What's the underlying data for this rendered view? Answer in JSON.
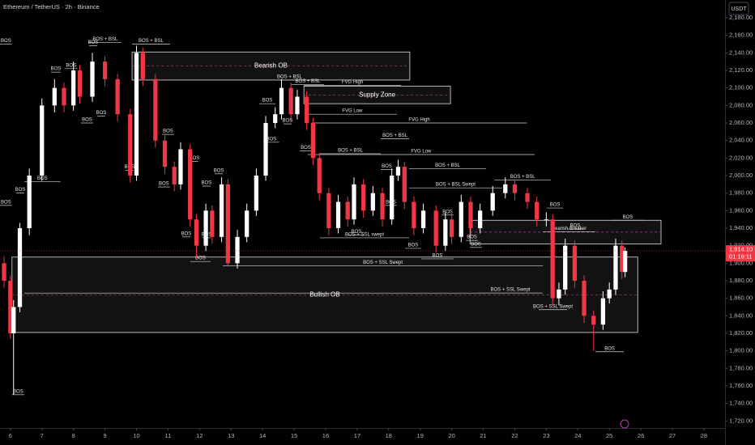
{
  "chart_data": {
    "type": "candlestick",
    "title": "Ethereum / TetherUS · 2h · Binance",
    "currency": "USDT",
    "up_color": "#ffffff",
    "down_color": "#f23645",
    "xlim": [
      5.67,
      28.67
    ],
    "ylim": [
      1712,
      2192
    ],
    "xticks": [
      6,
      7,
      8,
      9,
      10,
      11,
      12,
      13,
      14,
      15,
      16,
      17,
      18,
      19,
      20,
      21,
      22,
      23,
      24,
      25,
      26,
      27,
      28
    ],
    "yticks": [
      {
        "value": 1720,
        "label": "1,720.00"
      },
      {
        "value": 1740,
        "label": "1,740.00"
      },
      {
        "value": 1760,
        "label": "1,760.00"
      },
      {
        "value": 1780,
        "label": "1,780.00"
      },
      {
        "value": 1800,
        "label": "1,800.00"
      },
      {
        "value": 1820,
        "label": "1,820.00"
      },
      {
        "value": 1840,
        "label": "1,840.00"
      },
      {
        "value": 1860,
        "label": "1,860.00"
      },
      {
        "value": 1880,
        "label": "1,880.00"
      },
      {
        "value": 1900,
        "label": "1,900.00"
      },
      {
        "value": 1920,
        "label": "1,920.00"
      },
      {
        "value": 1940,
        "label": "1,940.00"
      },
      {
        "value": 1960,
        "label": "1,960.00"
      },
      {
        "value": 1980,
        "label": "1,980.00"
      },
      {
        "value": 2000,
        "label": "2,000.00"
      },
      {
        "value": 2020,
        "label": "2,020.00"
      },
      {
        "value": 2040,
        "label": "2,040.00"
      },
      {
        "value": 2060,
        "label": "2,060.00"
      },
      {
        "value": 2080,
        "label": "2,080.00"
      },
      {
        "value": 2100,
        "label": "2,100.00"
      },
      {
        "value": 2120,
        "label": "2,120.00"
      },
      {
        "value": 2140,
        "label": "2,140.00"
      },
      {
        "value": 2160,
        "label": "2,160.00"
      },
      {
        "value": 2180,
        "label": "2,180.00"
      }
    ],
    "x": [
      5.8,
      6.0,
      6.1,
      6.3,
      6.6,
      7.0,
      7.4,
      7.7,
      8.0,
      8.2,
      8.6,
      9.0,
      9.4,
      9.8,
      10.0,
      10.2,
      10.6,
      10.9,
      11.2,
      11.4,
      11.7,
      11.9,
      12.2,
      12.4,
      12.7,
      12.9,
      13.2,
      13.5,
      13.8,
      14.1,
      14.4,
      14.6,
      14.9,
      15.1,
      15.4,
      15.6,
      15.8,
      16.1,
      16.4,
      16.7,
      16.9,
      17.2,
      17.5,
      17.8,
      18.1,
      18.3,
      18.5,
      18.8,
      19.1,
      19.5,
      19.8,
      20.0,
      20.3,
      20.6,
      20.9,
      21.3,
      21.7,
      22.0,
      22.4,
      22.7,
      23.0,
      23.2,
      23.4,
      23.6,
      23.9,
      24.2,
      24.5,
      24.8,
      25.0,
      25.2,
      25.4,
      25.5
    ],
    "open": [
      1900,
      1880,
      1820,
      1850,
      1940,
      2000,
      2080,
      2100,
      2080,
      2120,
      2090,
      2130,
      2110,
      2070,
      2000,
      2140,
      2110,
      2040,
      2010,
      1990,
      2030,
      1950,
      1920,
      1960,
      1930,
      1990,
      1900,
      1930,
      1960,
      2000,
      2060,
      2070,
      2100,
      2070,
      2090,
      2060,
      2020,
      1980,
      1940,
      1970,
      1950,
      1990,
      1960,
      1980,
      1950,
      2000,
      2010,
      1970,
      1940,
      1960,
      1920,
      1950,
      1930,
      1970,
      1940,
      1960,
      1980,
      1990,
      1980,
      1970,
      1950,
      1950,
      1860,
      1870,
      1920,
      1880,
      1840,
      1830,
      1860,
      1870,
      1920,
      1890
    ],
    "high": [
      1908,
      1886,
      1858,
      1946,
      2008,
      2088,
      2110,
      2106,
      2130,
      2126,
      2140,
      2136,
      2116,
      2076,
      2148,
      2146,
      2116,
      2046,
      2016,
      2038,
      2036,
      1956,
      1968,
      1966,
      1998,
      1996,
      1938,
      1968,
      2008,
      2068,
      2078,
      2110,
      2106,
      2098,
      2096,
      2066,
      2026,
      1986,
      1978,
      1976,
      1998,
      1996,
      1988,
      1986,
      2008,
      2018,
      2016,
      1976,
      1968,
      1966,
      1958,
      1956,
      1978,
      1976,
      1968,
      1988,
      1998,
      1996,
      1986,
      1976,
      1958,
      1956,
      1878,
      1928,
      1926,
      1886,
      1846,
      1868,
      1878,
      1928,
      1926,
      1918
    ],
    "low": [
      1872,
      1814,
      1750,
      1844,
      1932,
      1994,
      2072,
      2072,
      2074,
      2082,
      2084,
      2102,
      2062,
      1992,
      1994,
      2102,
      2032,
      2002,
      1982,
      1984,
      1942,
      1906,
      1914,
      1922,
      1924,
      1896,
      1894,
      1924,
      1954,
      1994,
      2054,
      2064,
      2062,
      2064,
      2052,
      2012,
      1972,
      1932,
      1934,
      1942,
      1944,
      1952,
      1954,
      1942,
      1944,
      1994,
      1962,
      1932,
      1934,
      1912,
      1914,
      1922,
      1924,
      1932,
      1934,
      1954,
      1974,
      1972,
      1962,
      1942,
      1942,
      1852,
      1852,
      1864,
      1872,
      1832,
      1800,
      1824,
      1854,
      1864,
      1882,
      1884
    ],
    "close": [
      1880,
      1820,
      1850,
      1940,
      2000,
      2080,
      2100,
      2080,
      2120,
      2090,
      2130,
      2110,
      2070,
      2000,
      2140,
      2110,
      2040,
      2010,
      1990,
      2030,
      1950,
      1920,
      1960,
      1930,
      1990,
      1900,
      1930,
      1960,
      2000,
      2060,
      2070,
      2100,
      2070,
      2090,
      2060,
      2020,
      1980,
      1940,
      1970,
      1950,
      1990,
      1960,
      1980,
      1950,
      2000,
      2010,
      1970,
      1940,
      1960,
      1920,
      1950,
      1930,
      1970,
      1940,
      1960,
      1980,
      1990,
      1980,
      1970,
      1950,
      1950,
      1860,
      1870,
      1920,
      1880,
      1840,
      1830,
      1860,
      1870,
      1920,
      1890,
      1914.1
    ],
    "last_price": {
      "value": 1914.1,
      "label": "1,914.10"
    },
    "countdown": "01:16:11",
    "zones": [
      {
        "label": "Bearish OB",
        "x1": 9.86,
        "x2": 18.67,
        "top": 2141,
        "bottom": 2109
      },
      {
        "label": "Supply Zone",
        "x1": 15.31,
        "x2": 19.96,
        "top": 2102,
        "bottom": 2082
      },
      {
        "x1": 20.58,
        "x2": 26.64,
        "top": 1949,
        "bottom": 1922
      },
      {
        "label": "Bullish OB",
        "x1": 6.05,
        "x2": 25.9,
        "top": 1907,
        "bottom": 1821
      }
    ],
    "levels": [
      {
        "label": "BOS",
        "x1": 5.67,
        "x2": 6.05,
        "price": 2150
      },
      {
        "label": "BOS",
        "x1": 7.29,
        "x2": 7.59,
        "price": 2118
      },
      {
        "label": "BOS",
        "x1": 7.72,
        "x2": 8.13,
        "price": 2122
      },
      {
        "label": "BOS + BSL",
        "x1": 8.49,
        "x2": 9.52,
        "price": 2152
      },
      {
        "label": "BOS",
        "x1": 8.49,
        "x2": 8.75,
        "price": 2148
      },
      {
        "label": "BOS + BSL",
        "x1": 9.86,
        "x2": 11.06,
        "price": 2150
      },
      {
        "label": "BOS",
        "x1": 6.44,
        "x2": 7.59,
        "price": 1993
      },
      {
        "label": "BOS",
        "x1": 8.24,
        "x2": 8.62,
        "price": 2060
      },
      {
        "label": "BOS",
        "x1": 8.75,
        "x2": 9.01,
        "price": 2068
      },
      {
        "label": "BOS",
        "x1": 9.65,
        "x2": 9.91,
        "price": 2006
      },
      {
        "label": "BOS",
        "x1": 10.81,
        "x2": 11.19,
        "price": 2047
      },
      {
        "label": "BOS",
        "x1": 11.71,
        "x2": 11.96,
        "price": 2016
      },
      {
        "label": "BOS",
        "x1": 10.68,
        "x2": 11.06,
        "price": 1987
      },
      {
        "label": "BOS",
        "x1": 12.48,
        "x2": 12.74,
        "price": 2002
      },
      {
        "label": "BOS",
        "x1": 12.09,
        "x2": 12.35,
        "price": 1988
      },
      {
        "label": "BOS",
        "x1": 11.45,
        "x2": 11.71,
        "price": 1930
      },
      {
        "label": "BOS",
        "x1": 12.09,
        "x2": 12.35,
        "price": 1929
      },
      {
        "label": "BOS",
        "x1": 11.71,
        "x2": 12.35,
        "price": 1902
      },
      {
        "label": "BOS",
        "x1": 13.89,
        "x2": 14.41,
        "price": 2082
      },
      {
        "label": "BOS",
        "x1": 14.02,
        "x2": 14.53,
        "price": 2038
      },
      {
        "label": "BOS",
        "x1": 14.66,
        "x2": 14.92,
        "price": 2059
      },
      {
        "label": "BOS + BSL",
        "x1": 14.53,
        "x2": 15.18,
        "price": 2109
      },
      {
        "label": "BOS + BSL",
        "x1": 14.92,
        "x2": 15.95,
        "price": 2104
      },
      {
        "label": "BOS",
        "x1": 15.18,
        "x2": 15.56,
        "price": 2028
      },
      {
        "label": "FVG High",
        "x1": 15.31,
        "x2": 18.39,
        "price": 2103
      },
      {
        "label": "FVG Low",
        "x1": 15.43,
        "x2": 18.26,
        "price": 2070
      },
      {
        "label": "FVG High",
        "x1": 15.56,
        "x2": 22.38,
        "price": 2060
      },
      {
        "label": "FVG Low",
        "x1": 15.43,
        "x2": 22.63,
        "price": 2024
      },
      {
        "label": "BOS + BSL",
        "x1": 15.82,
        "x2": 17.75,
        "price": 2025
      },
      {
        "label": "BOS + BSL",
        "x1": 17.75,
        "x2": 18.65,
        "price": 2042
      },
      {
        "label": "BOS",
        "x1": 17.75,
        "x2": 18.13,
        "price": 2007
      },
      {
        "label": "BOS",
        "x1": 17.88,
        "x2": 18.26,
        "price": 1966
      },
      {
        "label": "BOS",
        "x1": 16.72,
        "x2": 17.23,
        "price": 1932
      },
      {
        "label": "BOS + SSL swept",
        "x1": 15.82,
        "x2": 18.65,
        "price": 1929
      },
      {
        "label": "BOS",
        "x1": 18.52,
        "x2": 19.03,
        "price": 1917
      },
      {
        "label": "BOS + BSL",
        "x1": 18.65,
        "x2": 21.09,
        "price": 2008
      },
      {
        "label": "BOS + BSL Swept",
        "x1": 18.65,
        "x2": 21.6,
        "price": 1986
      },
      {
        "label": "BOS + BSL",
        "x1": 21.35,
        "x2": 23.15,
        "price": 1995
      },
      {
        "label": "BOS",
        "x1": 19.68,
        "x2": 20.06,
        "price": 1955
      },
      {
        "label": "BOS",
        "x1": 20.45,
        "x2": 20.83,
        "price": 1926
      },
      {
        "label": "BOS",
        "x1": 20.58,
        "x2": 20.96,
        "price": 1918
      },
      {
        "label": "BOS",
        "x1": 19.03,
        "x2": 20.06,
        "price": 1905
      },
      {
        "label": "BOS + SSL Swept",
        "x1": 12.74,
        "x2": 22.89,
        "price": 1897
      },
      {
        "label": "BOS + SSL Swept",
        "x1": 20.83,
        "x2": 22.89,
        "price": 1866
      },
      {
        "label": "BOS + SSL Swept",
        "x1": 22.76,
        "x2": 23.66,
        "price": 1847
      },
      {
        "label": "BOS",
        "x1": 23.02,
        "x2": 23.53,
        "price": 1963
      },
      {
        "label": "BOS",
        "x1": 23.66,
        "x2": 24.17,
        "price": 1939
      },
      {
        "label": "BOS",
        "x1": 25.07,
        "x2": 26.1,
        "price": 1949
      },
      {
        "label": "BOS",
        "x1": 24.56,
        "x2": 25.46,
        "price": 1799
      },
      {
        "label": "BOS",
        "x1": 6.05,
        "x2": 6.44,
        "price": 1750
      },
      {
        "label": "BOS",
        "x1": 6.18,
        "x2": 6.44,
        "price": 1980
      },
      {
        "label": "BOS",
        "x1": 5.67,
        "x2": 6.05,
        "price": 1966
      },
      {
        "label": "Bearish Breaker",
        "x1": 22.89,
        "x2": 24.56,
        "price": 1936
      },
      {
        "x1": 6.44,
        "x2": 22.84,
        "price": 1866
      }
    ]
  }
}
